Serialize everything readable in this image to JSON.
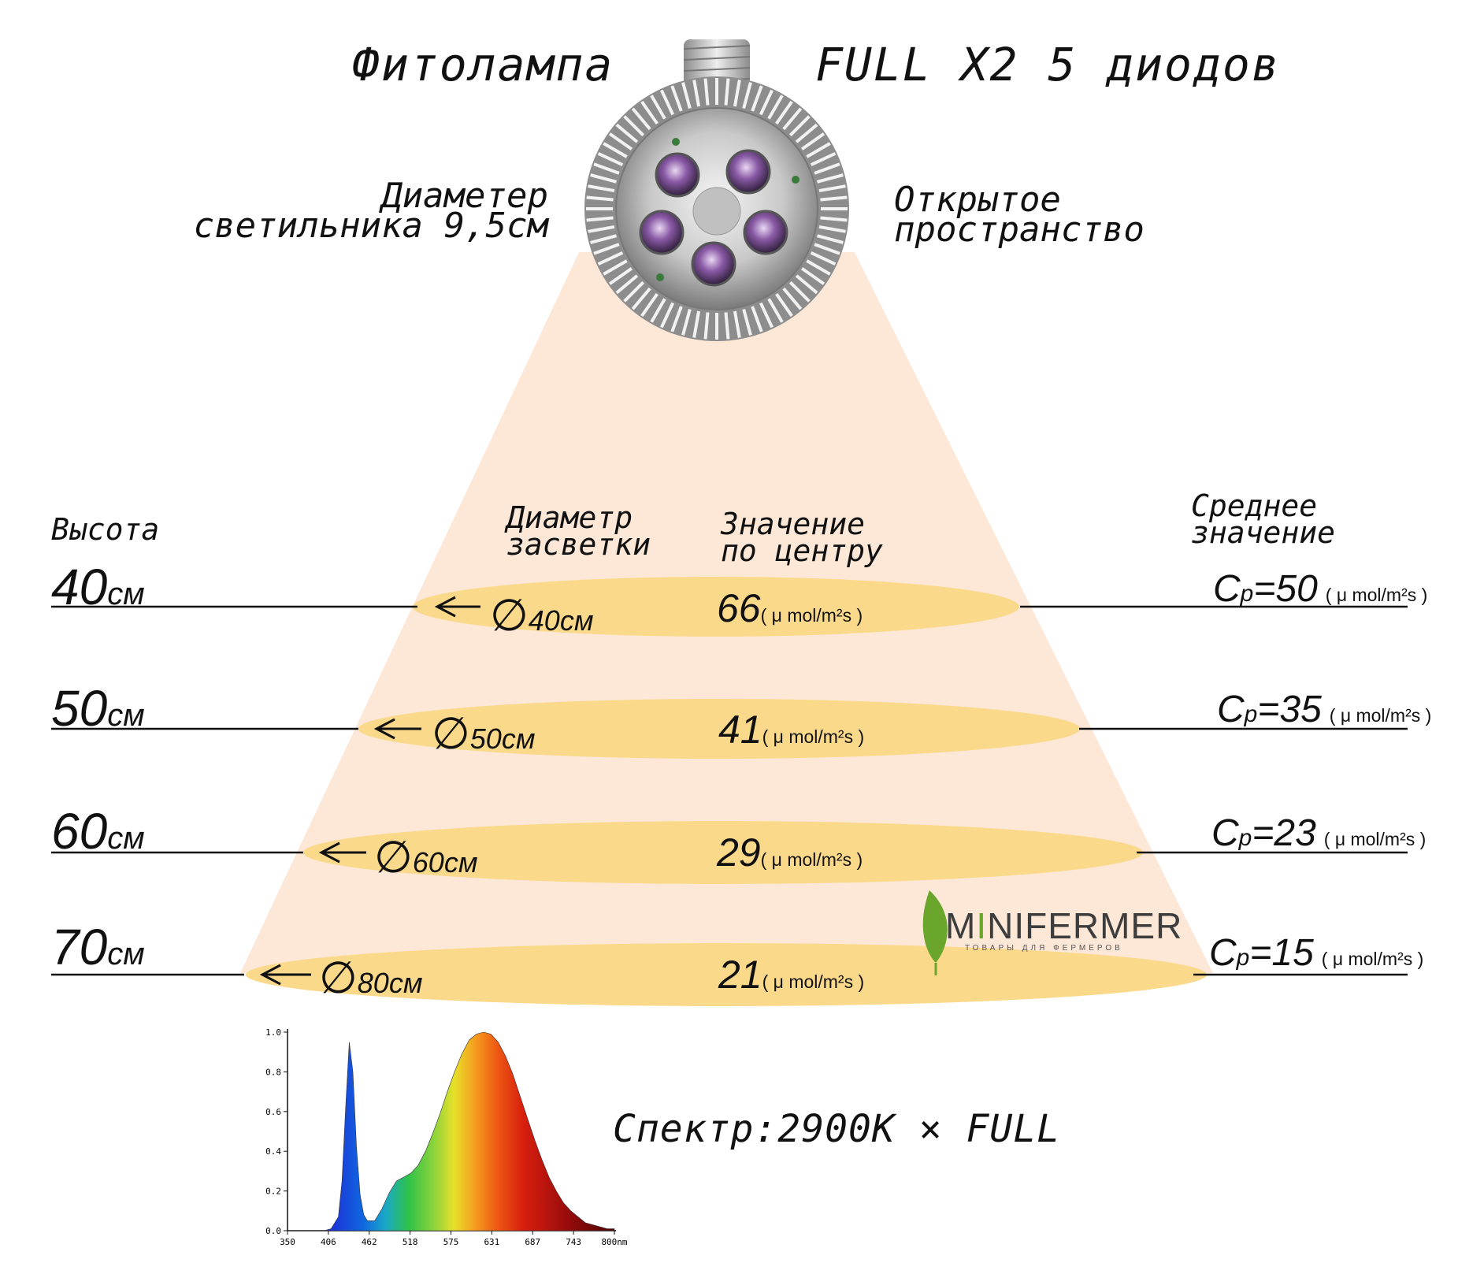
{
  "title_left": "Фитолампа",
  "title_right": "FULL X2 5 диодов",
  "lamp_diameter_line1": "Диаметер",
  "lamp_diameter_line2": "светильника 9,5см",
  "space_line1": "Открытое",
  "space_line2": "пространство",
  "headers": {
    "height": "Высота",
    "diameter_line1": "Диаметр",
    "diameter_line2": "засветки",
    "center_line1": "Значение",
    "center_line2": "по центру",
    "avg_line1": "Среднее",
    "avg_line2": "значение"
  },
  "unit": "( μ mol/m²s )",
  "rows": [
    {
      "height": "40",
      "height_unit": "см",
      "diameter_symbol": "∅",
      "diameter": "40см",
      "center": "66",
      "cp_label": "C",
      "cp_sub": "p",
      "cp_value": "=50"
    },
    {
      "height": "50",
      "height_unit": "см",
      "diameter_symbol": "∅",
      "diameter": "50см",
      "center": "41",
      "cp_label": "C",
      "cp_sub": "p",
      "cp_value": "=35"
    },
    {
      "height": "60",
      "height_unit": "см",
      "diameter_symbol": "∅",
      "diameter": "60см",
      "center": "29",
      "cp_label": "C",
      "cp_sub": "p",
      "cp_value": "=23"
    },
    {
      "height": "70",
      "height_unit": "см",
      "diameter_symbol": "∅",
      "diameter": "80см",
      "center": "21",
      "cp_label": "C",
      "cp_sub": "p",
      "cp_value": "=15"
    }
  ],
  "logo": {
    "prefix": "M",
    "accent": "I",
    "rest": "NIFERMER",
    "tagline": "ТОВАРЫ ДЛЯ ФЕРМЕРОВ"
  },
  "spectrum_label": "Спектр:2900K × FULL",
  "colors": {
    "beam": "#fde8d8",
    "disc": "#fbd98a",
    "logo_green": "#6aa52c"
  },
  "chart_data": {
    "type": "area",
    "title": "",
    "xlabel": "nm",
    "ylabel": "",
    "x_ticks": [
      "350",
      "406",
      "462",
      "518",
      "575",
      "631",
      "687",
      "743",
      "800nm"
    ],
    "y_ticks": [
      "0.0",
      "0.2",
      "0.4",
      "0.6",
      "0.8",
      "1.0"
    ],
    "xlim": [
      350,
      800
    ],
    "ylim": [
      0,
      1.0
    ],
    "series": [
      {
        "name": "2900K × FULL",
        "x": [
          350,
          380,
          400,
          410,
          420,
          425,
          430,
          435,
          440,
          445,
          450,
          455,
          460,
          470,
          480,
          490,
          500,
          510,
          520,
          530,
          540,
          550,
          560,
          570,
          580,
          590,
          600,
          610,
          620,
          630,
          640,
          650,
          660,
          670,
          680,
          690,
          700,
          710,
          720,
          730,
          740,
          750,
          760,
          770,
          780,
          790,
          800
        ],
        "y": [
          0,
          0,
          0,
          0.01,
          0.07,
          0.25,
          0.62,
          0.95,
          0.8,
          0.42,
          0.18,
          0.08,
          0.05,
          0.05,
          0.11,
          0.19,
          0.25,
          0.27,
          0.29,
          0.33,
          0.4,
          0.49,
          0.59,
          0.7,
          0.8,
          0.89,
          0.96,
          0.99,
          1.0,
          0.99,
          0.95,
          0.88,
          0.79,
          0.68,
          0.57,
          0.46,
          0.36,
          0.27,
          0.2,
          0.14,
          0.1,
          0.07,
          0.04,
          0.03,
          0.02,
          0.01,
          0.01
        ]
      }
    ]
  }
}
